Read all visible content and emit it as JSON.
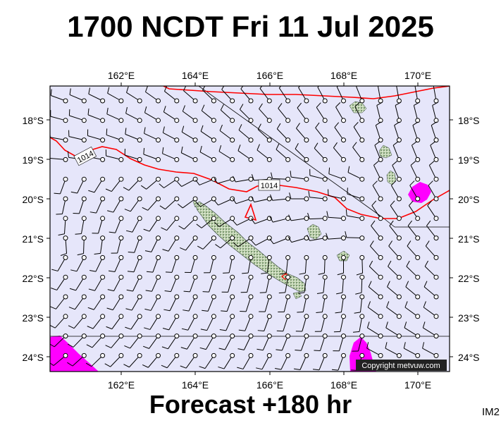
{
  "title": "1700 NCDT Fri 11 Jul 2025",
  "footer": "Forecast +180 hr",
  "image_code": "IM2",
  "copyright": "Copyright metvuw.com",
  "map": {
    "lon_range": [
      160.2,
      171.0
    ],
    "lat_range": [
      -24.35,
      -17.05
    ],
    "lon_ticks": [
      "162°E",
      "164°E",
      "166°E",
      "168°E",
      "170°E"
    ],
    "lat_ticks": [
      "18°S",
      "19°S",
      "20°S",
      "21°S",
      "22°S",
      "23°S",
      "24°S"
    ],
    "isobar_labels": [
      "1014",
      "1014"
    ],
    "colors": {
      "ocean": "#e6e6fa",
      "isobar": "#ff0000",
      "rain": "#ff00ff",
      "land": "#b4c8a8"
    }
  }
}
